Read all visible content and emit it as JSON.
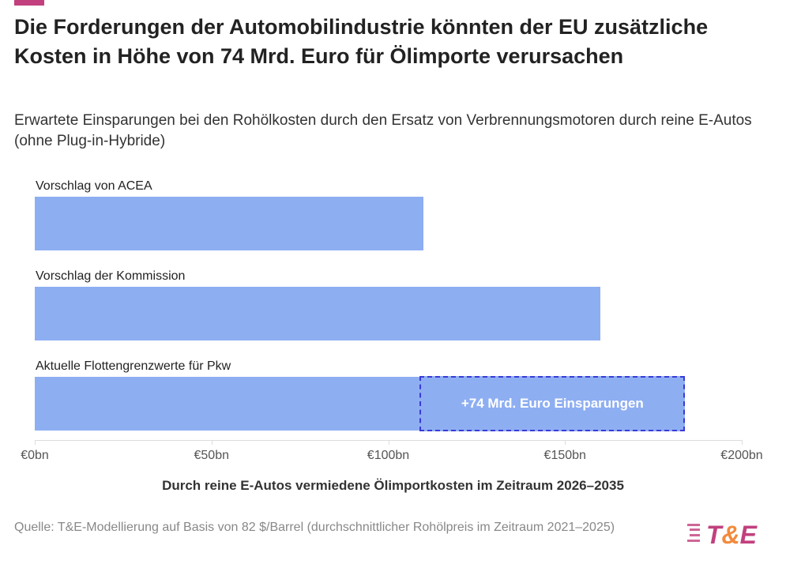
{
  "header": {
    "title": "Die Forderungen der Automobilindustrie könnten der EU zusätzliche Kosten in Höhe von 74 Mrd. Euro für Ölimporte verursachen",
    "subtitle": "Erwartete Einsparungen bei den Rohölkosten durch den Ersatz von Verbrennungsmotoren durch reine E-Autos (ohne Plug-in-Hybride)"
  },
  "chart_data": {
    "type": "bar",
    "orientation": "horizontal",
    "categories": [
      "Vorschlag von ACEA",
      "Vorschlag der Kommission",
      "Aktuelle Flottengrenzwerte für Pkw"
    ],
    "values": [
      110,
      160,
      184
    ],
    "annotation": {
      "category": "Aktuelle Flottengrenzwerte für Pkw",
      "from": 110,
      "to": 184,
      "text": "+74 Mrd. Euro Einsparungen"
    },
    "xlabel": "Durch reine E-Autos vermiedene Ölimportkosten im Zeitraum 2026–2035",
    "xlim": [
      0,
      200
    ],
    "xticks": [
      0,
      50,
      100,
      150,
      200
    ],
    "xtick_labels": [
      "€0bn",
      "€50bn",
      "€100bn",
      "€150bn",
      "€200bn"
    ],
    "bar_color": "#8eaef2",
    "annotation_border_color": "#3a3ad6"
  },
  "footer": {
    "source": "Quelle: T&E-Modellierung auf Basis von 82 $/Barrel (durchschnittlicher Rohölpreis im Zeitraum 2021–2025)",
    "logo_text": "T&E"
  },
  "colors": {
    "accent": "#c2407e",
    "logo_magenta": "#c2407e",
    "logo_orange": "#f28a3c"
  }
}
